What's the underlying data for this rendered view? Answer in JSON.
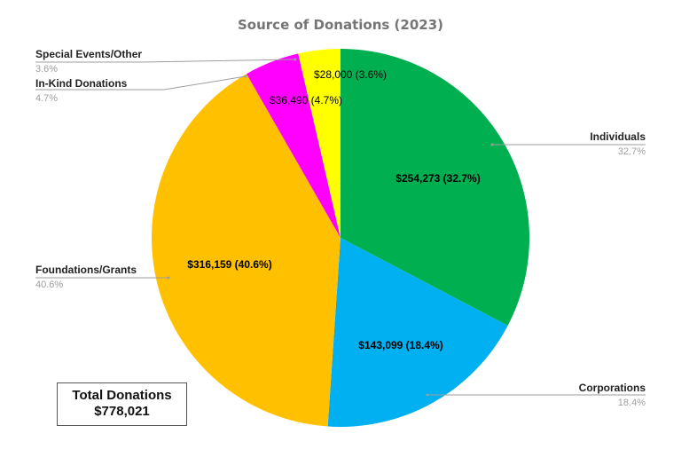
{
  "chart_data": {
    "type": "pie",
    "title": "Source of Donations (2023)",
    "slices": [
      {
        "name": "Individuals",
        "value": 254273,
        "label": "$254,273  (32.7%)",
        "percent_label": "32.7%",
        "color": "#00b050"
      },
      {
        "name": "Corporations",
        "value": 143099,
        "label": "$143,099  (18.4%)",
        "percent_label": "18.4%",
        "color": "#00b0f0"
      },
      {
        "name": "Foundations/Grants",
        "value": 316159,
        "label": "$316,159  (40.6%)",
        "percent_label": "40.6%",
        "color": "#ffc000"
      },
      {
        "name": "In-Kind Donations",
        "value": 36490,
        "label": "$36,490 (4.7%)",
        "percent_label": "4.7%",
        "color": "#ff00ff"
      },
      {
        "name": "Special Events/Other",
        "value": 28000,
        "label": "$28,000 (3.6%)",
        "percent_label": "3.6%",
        "color": "#ffff00"
      }
    ]
  },
  "total_box": {
    "line1": "Total Donations",
    "line2": "$778,021"
  }
}
